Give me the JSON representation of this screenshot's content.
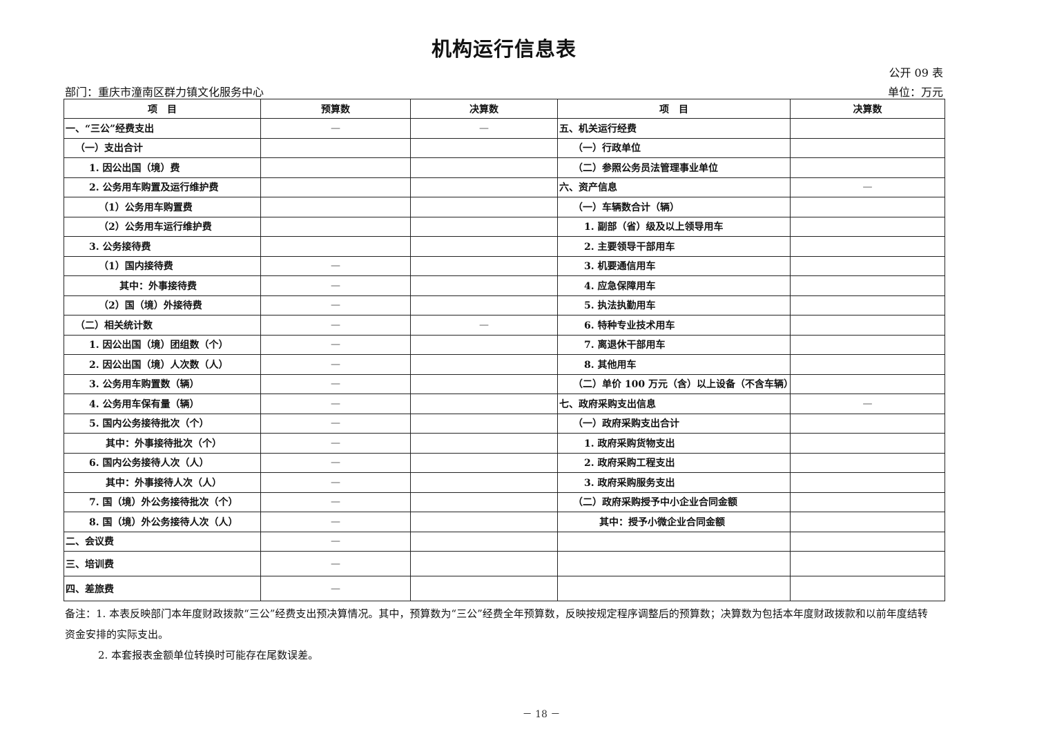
{
  "title": "机构运行信息表",
  "table_no": "公开 09 表",
  "department": "部门：重庆市潼南区群力镇文化服务中心",
  "unit": "单位：万元",
  "headers": [
    "项　目",
    "预算数",
    "决算数",
    "项　目",
    "决算数"
  ],
  "rows": [
    {
      "left": "一、“三公”经费支出",
      "ll": 0,
      "budget": "—",
      "final": "—",
      "right": "五、机关运行经费",
      "rl": 0,
      "rfinal": ""
    },
    {
      "left": "（一）支出合计",
      "ll": 1,
      "budget": "",
      "final": "",
      "right": "（一）行政单位",
      "rl": 1,
      "rfinal": ""
    },
    {
      "left": "1. 因公出国（境）费",
      "ll": 2,
      "budget": "",
      "final": "",
      "right": "（二）参照公务员法管理事业单位",
      "rl": 1,
      "rfinal": ""
    },
    {
      "left": "2. 公务用车购置及运行维护费",
      "ll": 2,
      "budget": "",
      "final": "",
      "right": "六、资产信息",
      "rl": 0,
      "rfinal": "—"
    },
    {
      "left": "（1）公务用车购置费",
      "ll": 3,
      "budget": "",
      "final": "",
      "right": "（一）车辆数合计（辆）",
      "rl": 1,
      "rfinal": ""
    },
    {
      "left": "（2）公务用车运行维护费",
      "ll": 3,
      "budget": "",
      "final": "",
      "right": "1. 副部（省）级及以上领导用车",
      "rl": 2,
      "rfinal": ""
    },
    {
      "left": "3. 公务接待费",
      "ll": 2,
      "budget": "",
      "final": "",
      "right": "2. 主要领导干部用车",
      "rl": 2,
      "rfinal": ""
    },
    {
      "left": "（1）国内接待费",
      "ll": 3,
      "budget": "—",
      "final": "",
      "right": "3. 机要通信用车",
      "rl": 2,
      "rfinal": ""
    },
    {
      "left": "其中：外事接待费",
      "ll": 5,
      "budget": "—",
      "final": "",
      "right": "4. 应急保障用车",
      "rl": 2,
      "rfinal": ""
    },
    {
      "left": "（2）国（境）外接待费",
      "ll": 3,
      "budget": "—",
      "final": "",
      "right": "5. 执法执勤用车",
      "rl": 2,
      "rfinal": ""
    },
    {
      "left": "（二）相关统计数",
      "ll": 1,
      "budget": "—",
      "final": "—",
      "right": "6. 特种专业技术用车",
      "rl": 2,
      "rfinal": ""
    },
    {
      "left": "1. 因公出国（境）团组数（个）",
      "ll": 2,
      "budget": "—",
      "final": "",
      "right": "7. 离退休干部用车",
      "rl": 2,
      "rfinal": ""
    },
    {
      "left": "2. 因公出国（境）人次数（人）",
      "ll": 2,
      "budget": "—",
      "final": "",
      "right": "8. 其他用车",
      "rl": 2,
      "rfinal": ""
    },
    {
      "left": "3. 公务用车购置数（辆）",
      "ll": 2,
      "budget": "—",
      "final": "",
      "right": "（二）单价 100 万元（含）以上设备（不含车辆）",
      "rl": 1,
      "rfinal": ""
    },
    {
      "left": "4. 公务用车保有量（辆）",
      "ll": 2,
      "budget": "—",
      "final": "",
      "right": "七、政府采购支出信息",
      "rl": 0,
      "rfinal": "—"
    },
    {
      "left": "5. 国内公务接待批次（个）",
      "ll": 2,
      "budget": "—",
      "final": "",
      "right": "（一）政府采购支出合计",
      "rl": 1,
      "rfinal": ""
    },
    {
      "left": "其中：外事接待批次（个）",
      "ll": 4,
      "budget": "—",
      "final": "",
      "right": "1. 政府采购货物支出",
      "rl": 2,
      "rfinal": ""
    },
    {
      "left": "6. 国内公务接待人次（人）",
      "ll": 2,
      "budget": "—",
      "final": "",
      "right": "2. 政府采购工程支出",
      "rl": 2,
      "rfinal": ""
    },
    {
      "left": "其中：外事接待人次（人）",
      "ll": 4,
      "budget": "—",
      "final": "",
      "right": "3. 政府采购服务支出",
      "rl": 2,
      "rfinal": ""
    },
    {
      "left": "7. 国（境）外公务接待批次（个）",
      "ll": 2,
      "budget": "—",
      "final": "",
      "right": "（二）政府采购授予中小企业合同金额",
      "rl": 1,
      "rfinal": ""
    },
    {
      "left": "8. 国（境）外公务接待人次（人）",
      "ll": 2,
      "budget": "—",
      "final": "",
      "right": "其中：授予小微企业合同金额",
      "rl": 3,
      "rfinal": ""
    },
    {
      "left": "二、会议费",
      "ll": 0,
      "budget": "—",
      "final": "",
      "right": "",
      "rl": 0,
      "rfinal": ""
    },
    {
      "left": "三、培训费",
      "ll": 0,
      "budget": "—",
      "final": "",
      "right": "",
      "rl": 0,
      "rfinal": "",
      "tall": true
    },
    {
      "left": "四、差旅费",
      "ll": 0,
      "budget": "—",
      "final": "",
      "right": "",
      "rl": 0,
      "rfinal": "",
      "tall": true
    }
  ],
  "notes": [
    "备注：1. 本表反映部门本年度财政拨款“三公”经费支出预决算情况。其中，预算数为“三公”经费全年预算数，反映按规定程序调整后的预算数；决算数为包括本年度财政拨款和以前年度结转",
    "资金安排的实际支出。",
    "2. 本套报表金额单位转换时可能存在尾数误差。"
  ],
  "page_number": "－ 18 －"
}
